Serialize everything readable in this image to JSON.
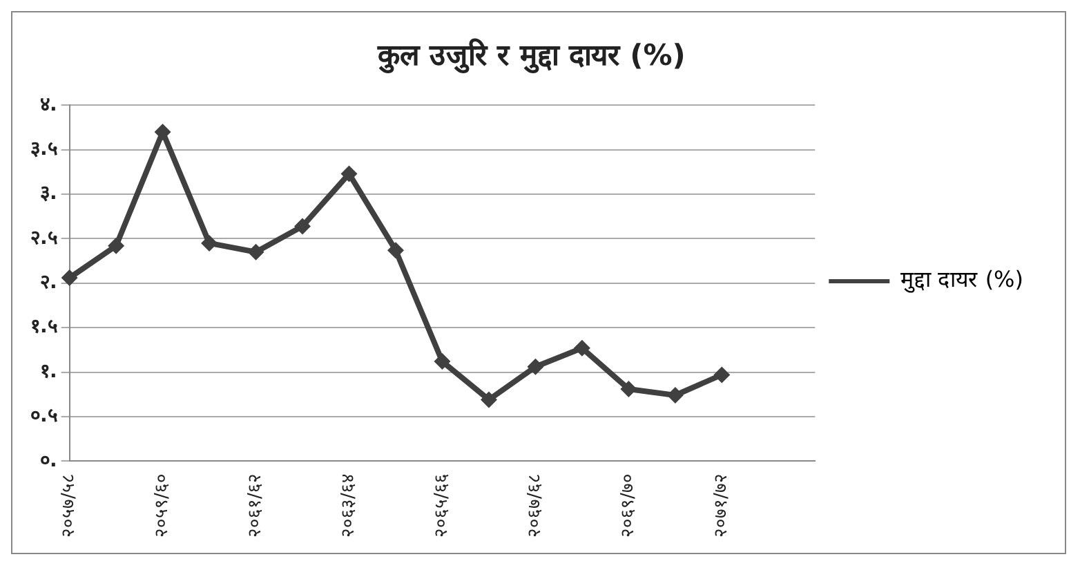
{
  "chart_data": {
    "type": "line",
    "title": "कुल उजुरि र मुद्दा दायर (%)",
    "categories": [
      "२०५७/५८",
      null,
      "२०५९/६०",
      null,
      "२०६१/६२",
      null,
      "२०६३/६४",
      null,
      "२०६५/६६",
      null,
      "२०६७/६८",
      null,
      "२०६९/७०",
      null,
      "२०७१/७२",
      null,
      null
    ],
    "series": [
      {
        "name": "मुद्दा दायर (%)",
        "color": "#404040",
        "values": [
          2.06,
          2.42,
          3.7,
          2.45,
          2.35,
          2.64,
          3.23,
          2.37,
          1.12,
          0.69,
          1.06,
          1.27,
          0.81,
          0.74,
          0.97,
          null,
          null
        ]
      }
    ],
    "ylim": [
      0,
      4
    ],
    "yticks": [
      {
        "value": 0,
        "label": "०."
      },
      {
        "value": 0.5,
        "label": "०.५"
      },
      {
        "value": 1,
        "label": "१."
      },
      {
        "value": 1.5,
        "label": "१.५"
      },
      {
        "value": 2,
        "label": "२."
      },
      {
        "value": 2.5,
        "label": "२.५"
      },
      {
        "value": 3,
        "label": "३."
      },
      {
        "value": 3.5,
        "label": "३.५"
      },
      {
        "value": 4,
        "label": "४."
      }
    ],
    "grid": "y",
    "legend": "right",
    "marker": "diamond",
    "line_style": "solid"
  }
}
